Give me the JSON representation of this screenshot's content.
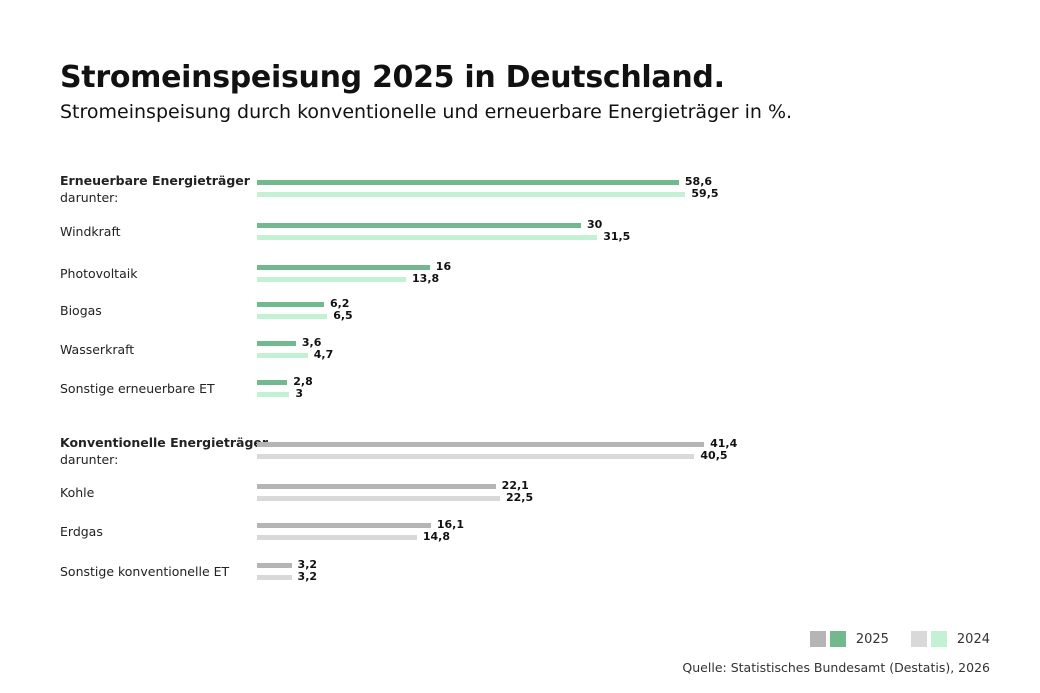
{
  "title": "Stromeinspeisung 2025 in Deutschland.",
  "subtitle": "Stromeinspeisung durch konventionelle und erneuerbare Energieträger in %.",
  "legend": {
    "label_2025": "2025",
    "label_2024": "2024"
  },
  "source": "Quelle: Statistisches Bundesamt (Destatis), 2026",
  "colors": {
    "renew_2025": "#72b98f",
    "renew_2024": "#c3f1d3",
    "conv_2025": "#b5b5b5",
    "conv_2024": "#d9d9d9"
  },
  "chart_data": {
    "type": "bar",
    "orientation": "horizontal",
    "series_names": [
      "2025",
      "2024"
    ],
    "groups": [
      {
        "group": "renewable",
        "rows": [
          {
            "label": "Erneuerbare Energieträger",
            "sublabel": "darunter:",
            "bold": true,
            "values": [
              58.6,
              59.5
            ],
            "labels": [
              "58,6",
              "59,5"
            ]
          },
          {
            "label": "Windkraft",
            "values": [
              30,
              31.5
            ],
            "labels": [
              "30",
              "31,5"
            ]
          },
          {
            "label": "Photovoltaik",
            "values": [
              16,
              13.8
            ],
            "labels": [
              "16",
              "13,8"
            ]
          },
          {
            "label": "Biogas",
            "values": [
              6.2,
              6.5
            ],
            "labels": [
              "6,2",
              "6,5"
            ]
          },
          {
            "label": "Wasserkraft",
            "values": [
              3.6,
              4.7
            ],
            "labels": [
              "3,6",
              "4,7"
            ]
          },
          {
            "label": "Sonstige erneuerbare ET",
            "values": [
              2.8,
              3
            ],
            "labels": [
              "2,8",
              "3"
            ]
          }
        ]
      },
      {
        "group": "conventional",
        "rows": [
          {
            "label": "Konventionelle Energieträger",
            "sublabel": "darunter:",
            "bold": true,
            "values": [
              41.4,
              40.5
            ],
            "labels": [
              "41,4",
              "40,5"
            ]
          },
          {
            "label": "Kohle",
            "values": [
              22.1,
              22.5
            ],
            "labels": [
              "22,1",
              "22,5"
            ]
          },
          {
            "label": "Erdgas",
            "values": [
              16.1,
              14.8
            ],
            "labels": [
              "16,1",
              "14,8"
            ]
          },
          {
            "label": "Sonstige konventionelle ET",
            "values": [
              3.2,
              3.2
            ],
            "labels": [
              "3,2",
              "3,2"
            ]
          }
        ]
      }
    ]
  }
}
